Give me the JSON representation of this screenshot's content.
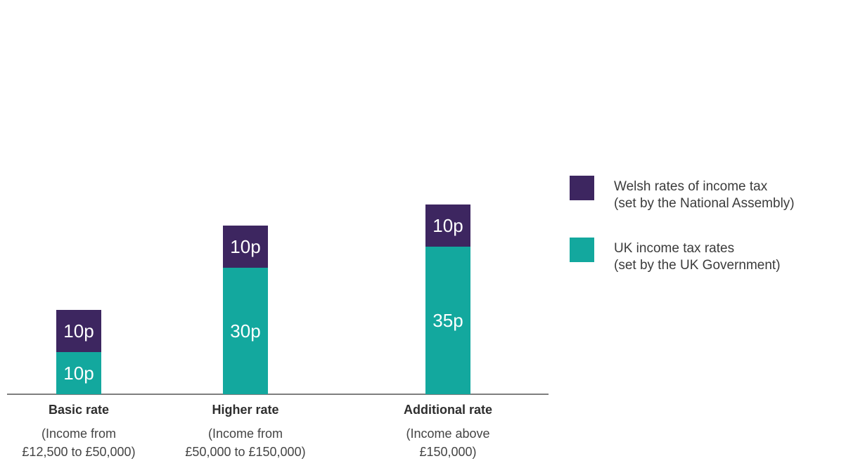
{
  "chart_data": {
    "type": "bar",
    "stacked": true,
    "categories": [
      {
        "title": "Basic rate",
        "sub": [
          "(Income from",
          "£12,500 to £50,000)"
        ]
      },
      {
        "title": "Higher rate",
        "sub": [
          "(Income from",
          "£50,000 to £150,000)"
        ]
      },
      {
        "title": "Additional rate",
        "sub": [
          "(Income above",
          "£150,000)"
        ]
      }
    ],
    "series": [
      {
        "name": "UK income tax rates (set by the UK Government)",
        "color": "#13a89e",
        "values": [
          10,
          30,
          35
        ],
        "labels": [
          "10p",
          "30p",
          "35p"
        ]
      },
      {
        "name": "Welsh rates of income tax (set by the National Assembly)",
        "color": "#3d2660",
        "values": [
          10,
          10,
          10
        ],
        "labels": [
          "10p",
          "10p",
          "10p"
        ]
      }
    ],
    "ylim": [
      0,
      45
    ],
    "grid": false,
    "legend_position": "right"
  },
  "legend": {
    "welsh": {
      "line1": "Welsh rates of income tax",
      "line2": "(set by the National Assembly)",
      "color": "#3d2660"
    },
    "uk": {
      "line1": "UK income tax rates",
      "line2": "(set by the UK Government)",
      "color": "#13a89e"
    }
  }
}
